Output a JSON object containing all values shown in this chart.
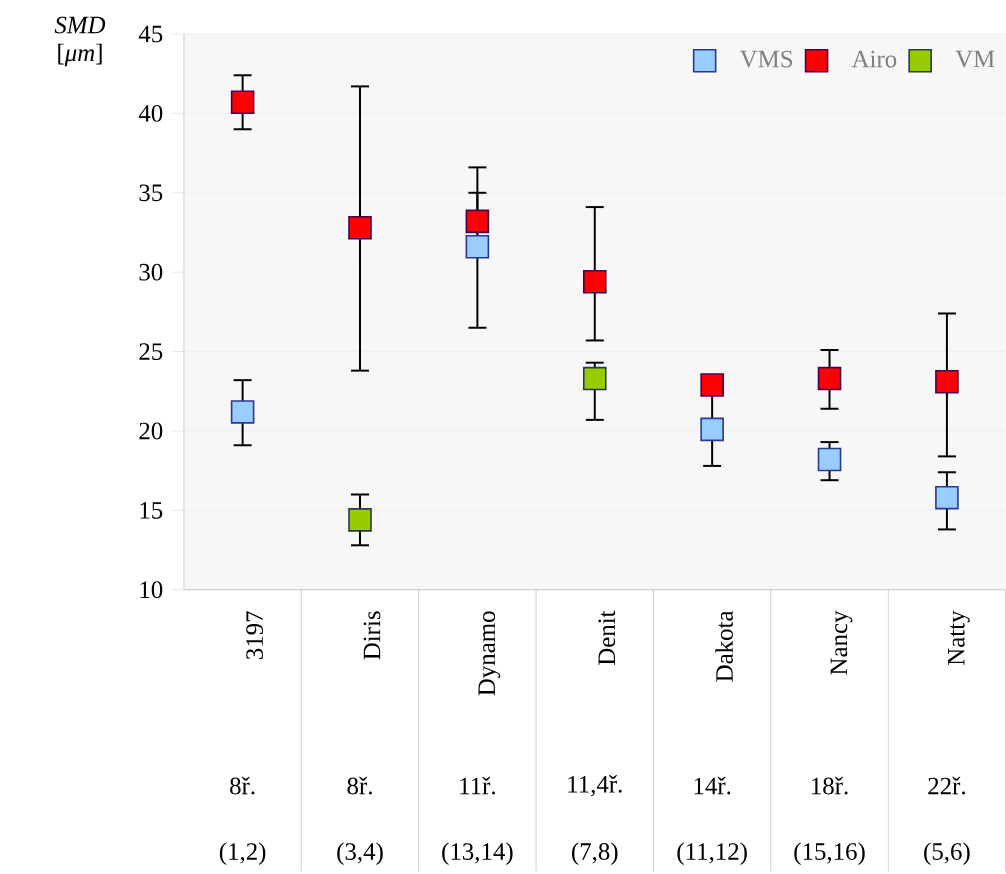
{
  "chart_data": {
    "type": "scatter",
    "ylabel": "*SMD* [*μm*]",
    "categories": [
      "3197",
      "Diris",
      "Dynamo",
      "Denit",
      "Dakota",
      "Nancy",
      "Natty"
    ],
    "annotations": [
      "8ř.",
      "8ř.",
      "11ř.",
      "11,4ř.",
      "14ř.",
      "18ř.",
      "22ř.",
      "(1,2)",
      "(3,4)",
      "(13,14)",
      "(7,8)",
      "(11,12)",
      "(15,16)",
      "(5,6)"
    ],
    "series": [
      {
        "name": "VMS",
        "color": "#99ccff",
        "values": [
          21.2,
          null,
          31.6,
          null,
          20.1,
          18.2,
          15.8
        ],
        "errors": [
          [
            19.1,
            23.2
          ],
          null,
          [
            26.5,
            36.6
          ],
          null,
          [
            17.8,
            22.5
          ],
          [
            16.9,
            19.3
          ],
          [
            13.8,
            17.4
          ]
        ]
      },
      {
        "name": "Airo",
        "color": "#ff0000",
        "values": [
          40.7,
          32.8,
          33.2,
          29.4,
          22.9,
          23.3,
          23.1
        ],
        "errors": [
          [
            39.0,
            42.4
          ],
          [
            23.8,
            41.7
          ],
          [
            31.0,
            35.0
          ],
          [
            25.7,
            34.1
          ],
          null,
          [
            21.4,
            25.1
          ],
          [
            18.4,
            27.4
          ]
        ]
      },
      {
        "name": "VM",
        "color": "#99cc00",
        "values": [
          null,
          14.4,
          null,
          23.3,
          null,
          null,
          null
        ],
        "errors": [
          null,
          [
            12.8,
            16.0
          ],
          null,
          [
            20.7,
            24.3
          ],
          null,
          null,
          null
        ]
      }
    ],
    "ylim": [
      10,
      45
    ],
    "yticks": [
      10,
      15,
      20,
      25,
      30,
      35,
      40,
      45
    ],
    "grid": "y",
    "legend": "top right",
    "marker": "square"
  }
}
